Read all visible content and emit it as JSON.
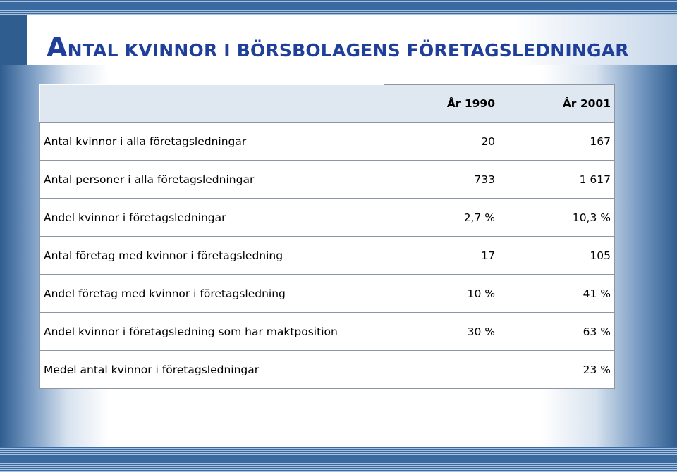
{
  "title_first": "A",
  "title_rest": "NTAL KVINNOR I BÖRSBOLAGENS FÖRETAGSLEDNINGAR",
  "columns": [
    "År 1990",
    "År 2001"
  ],
  "rows": [
    {
      "label": "Antal kvinnor i alla företagsledningar",
      "y1990": "20",
      "y2001": "167"
    },
    {
      "label": "Antal personer i alla företagsledningar",
      "y1990": "733",
      "y2001": "1 617"
    },
    {
      "label": "Andel kvinnor i företagsledningar",
      "y1990": "2,7 %",
      "y2001": "10,3 %"
    },
    {
      "label": "Antal företag med kvinnor i företagsledning",
      "y1990": "17",
      "y2001": "105"
    },
    {
      "label": "Andel företag med kvinnor i företagsledning",
      "y1990": "10 %",
      "y2001": "41 %"
    },
    {
      "label": "Andel kvinnor i företagsledning som har maktposition",
      "y1990": "30 %",
      "y2001": "63 %"
    },
    {
      "label": "Medel antal kvinnor i företagsledningar",
      "y1990": "",
      "y2001": "23 %"
    }
  ],
  "colors": {
    "title": "#1f3f9a",
    "frame": "#2f5d8f",
    "header_bg": "#dfe8f1"
  }
}
